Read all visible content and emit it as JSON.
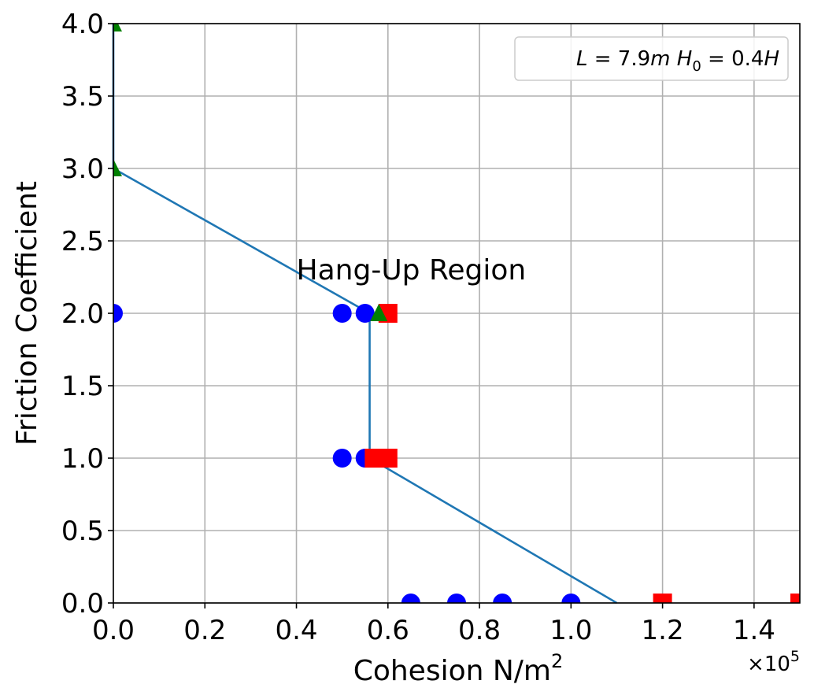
{
  "chart_data": {
    "type": "scatter",
    "xlabel": "Cohesion N/m",
    "xlabel_sup": "2",
    "ylabel": "Friction Coefficient",
    "x_offset_base": "×10",
    "x_offset_exp": "5",
    "xlim": [
      0,
      1.5
    ],
    "ylim": [
      0,
      4.0
    ],
    "xticks": [
      "0.0",
      "0.2",
      "0.4",
      "0.6",
      "0.8",
      "1.0",
      "1.2",
      "1.4"
    ],
    "xtick_values": [
      0,
      0.2,
      0.4,
      0.6,
      0.8,
      1.0,
      1.2,
      1.4
    ],
    "yticks": [
      "0.0",
      "0.5",
      "1.0",
      "1.5",
      "2.0",
      "2.5",
      "3.0",
      "3.5",
      "4.0"
    ],
    "ytick_values": [
      0,
      0.5,
      1.0,
      1.5,
      2.0,
      2.5,
      3.0,
      3.5,
      4.0
    ],
    "grid": true,
    "legend": {
      "placement": "top-right",
      "text": "L = 7.9m H0 = 0.4H",
      "parts": {
        "L": "L",
        "eq1": " = 7.9",
        "m": "m",
        "H": "H",
        "sub0": "0",
        "eq2": " = 0.4",
        "H2": "H"
      }
    },
    "annotation": {
      "text": "Hang-Up Region",
      "x": 0.4,
      "y": 2.2
    },
    "series": [
      {
        "marker": "circle",
        "color": "#0000ff",
        "points": [
          [
            0,
            2.0
          ],
          [
            0.5,
            2.0
          ],
          [
            0.55,
            2.0
          ],
          [
            0.5,
            1.0
          ],
          [
            0.55,
            1.0
          ],
          [
            0.65,
            0
          ],
          [
            0.75,
            0
          ],
          [
            0.85,
            0
          ],
          [
            1.0,
            0
          ]
        ]
      },
      {
        "marker": "square",
        "color": "#ff0000",
        "points": [
          [
            0.6,
            2.0
          ],
          [
            0.57,
            1.0
          ],
          [
            0.6,
            1.0
          ],
          [
            1.2,
            0
          ],
          [
            1.5,
            0
          ]
        ]
      },
      {
        "marker": "triangle",
        "color": "#008000",
        "points": [
          [
            0,
            4.0
          ],
          [
            0,
            3.0
          ],
          [
            0.58,
            2.0
          ]
        ]
      }
    ],
    "boundary_line": {
      "color": "#1f77b4",
      "points": [
        [
          0,
          4.0
        ],
        [
          0,
          3.0
        ],
        [
          0.56,
          2.0
        ],
        [
          0.56,
          1.0
        ],
        [
          1.1,
          0
        ]
      ]
    }
  }
}
